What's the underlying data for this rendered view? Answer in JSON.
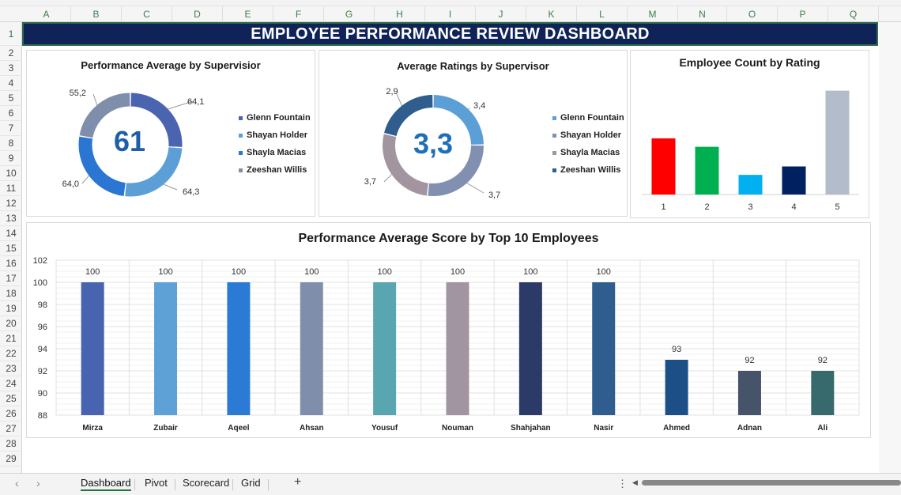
{
  "spreadsheet": {
    "columns": [
      "A",
      "B",
      "C",
      "D",
      "E",
      "F",
      "G",
      "H",
      "I",
      "J",
      "K",
      "L",
      "M",
      "N",
      "O",
      "P",
      "Q"
    ],
    "rows": [
      "1",
      "2",
      "3",
      "4",
      "5",
      "6",
      "7",
      "8",
      "9",
      "10",
      "11",
      "12",
      "13",
      "14",
      "15",
      "16",
      "17",
      "18",
      "19",
      "20",
      "21",
      "22",
      "23",
      "24",
      "25",
      "26",
      "27",
      "28",
      "29"
    ]
  },
  "dashboard_title": "EMPLOYEE PERFORMANCE REVIEW DASHBOARD",
  "chart_data": [
    {
      "type": "pie",
      "title": "Performance Average by Supervisior",
      "center_value": "61",
      "slice_labels": [
        "64,1",
        "64,3",
        "64,0",
        "55,2"
      ],
      "series": [
        {
          "name": "Glenn Fountain",
          "value": 64.1,
          "color": "#4b64b0"
        },
        {
          "name": "Shayan Holder",
          "value": 64.3,
          "color": "#5c9fd6"
        },
        {
          "name": "Shayla Macias",
          "value": 64.0,
          "color": "#2a76d2"
        },
        {
          "name": "Zeeshan Willis",
          "value": 55.2,
          "color": "#7f8fab"
        }
      ]
    },
    {
      "type": "pie",
      "title": "Average Ratings by Supervisor",
      "center_value": "3,3",
      "slice_labels": [
        "3,4",
        "3,7",
        "3,7",
        "2,9"
      ],
      "series": [
        {
          "name": "Glenn Fountain",
          "value": 3.4,
          "color": "#5c9fd6"
        },
        {
          "name": "Shayan Holder",
          "value": 3.7,
          "color": "#8190b0"
        },
        {
          "name": "Shayla Macias",
          "value": 3.7,
          "color": "#a3959f"
        },
        {
          "name": "Zeeshan Willis",
          "value": 2.9,
          "color": "#2e5d8e"
        }
      ]
    },
    {
      "type": "bar",
      "title": "Employee Count by Rating",
      "categories": [
        "1",
        "2",
        "3",
        "4",
        "5"
      ],
      "values": [
        20,
        17,
        7,
        10,
        37
      ],
      "colors": [
        "#ff0000",
        "#00b050",
        "#00b0f0",
        "#002060",
        "#b2bccb"
      ]
    },
    {
      "type": "bar",
      "title": "Performance Average Score by Top 10 Employees",
      "categories": [
        "Mirza",
        "Zubair",
        "Aqeel",
        "Ahsan",
        "Yousuf",
        "Nouman",
        "Shahjahan",
        "Nasir",
        "Ahmed",
        "Adnan",
        "Ali"
      ],
      "values": [
        100,
        100,
        100,
        100,
        100,
        100,
        100,
        100,
        93,
        92,
        92
      ],
      "value_labels": [
        "100",
        "100",
        "100",
        "100",
        "100",
        "100",
        "100",
        "100",
        "93",
        "92",
        "92"
      ],
      "colors": [
        "#4863b0",
        "#5ea1d6",
        "#2a7ad6",
        "#7f8fab",
        "#5aa6b0",
        "#a095a1",
        "#2b3a66",
        "#2e5d8e",
        "#1c4f86",
        "#465469",
        "#376a6c"
      ],
      "ylim": [
        88,
        102
      ],
      "yticks": [
        "88",
        "90",
        "92",
        "94",
        "96",
        "98",
        "100",
        "102"
      ]
    }
  ],
  "tabs": {
    "sheets": [
      "Dashboard",
      "Pivot",
      "Scorecard",
      "Grid"
    ],
    "active": "Dashboard",
    "add_label": "+",
    "nav_prev": "‹",
    "nav_next": "›",
    "menu": "⋮",
    "scroll_left": "◀"
  }
}
